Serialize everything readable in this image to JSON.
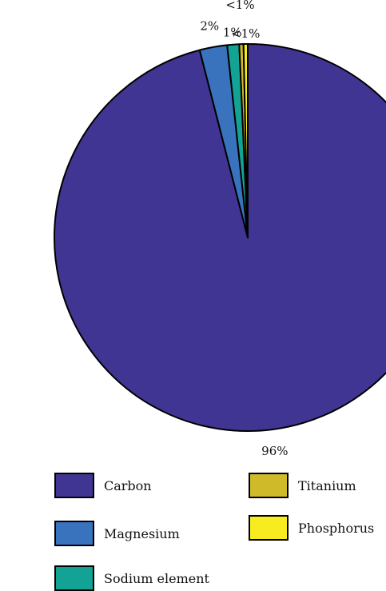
{
  "chart_data": {
    "type": "pie",
    "start_angle_deg": 0,
    "direction": "clockwise",
    "slices": [
      {
        "name": "Carbon",
        "value": 96.0,
        "label": "96%",
        "color": "#413593"
      },
      {
        "name": "Magnesium",
        "value": 2.3,
        "label": "2%",
        "color": "#3a73bd"
      },
      {
        "name": "Sodium element",
        "value": 1.0,
        "label": "1%",
        "color": "#13a394"
      },
      {
        "name": "Titanium",
        "value": 0.35,
        "label": "<1%",
        "color": "#cfba2a"
      },
      {
        "name": "Phosphorus",
        "value": 0.35,
        "label": "<1%",
        "color": "#f6ec1f"
      }
    ],
    "legend_placement": "bottom",
    "legend": {
      "items": [
        {
          "name": "Carbon",
          "color": "#413593"
        },
        {
          "name": "Magnesium",
          "color": "#3a73bd"
        },
        {
          "name": "Sodium element",
          "color": "#13a394"
        },
        {
          "name": "Titanium",
          "color": "#cfba2a"
        },
        {
          "name": "Phosphorus",
          "color": "#f6ec1f"
        }
      ]
    }
  }
}
